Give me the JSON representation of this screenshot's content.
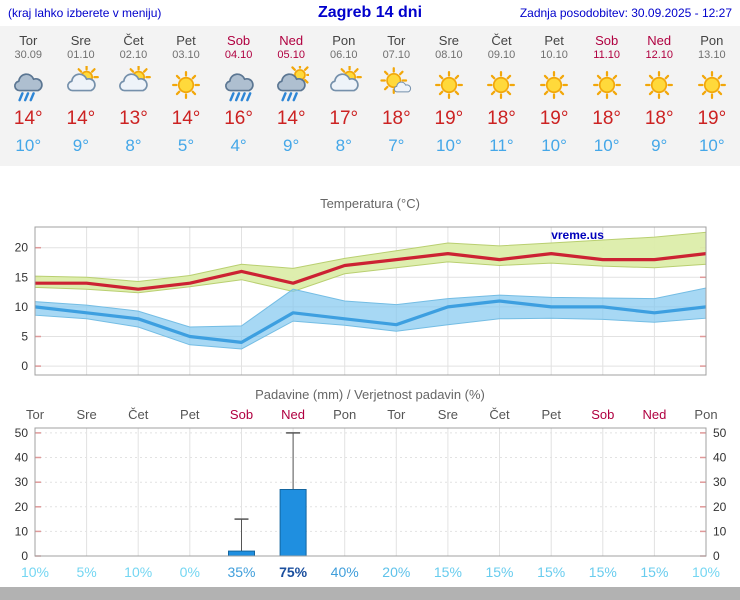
{
  "header": {
    "hint": "(kraj lahko izberete v meniju)",
    "title": "Zagreb 14 dni",
    "updated": "Zadnja posodobitev: 30.09.2025 - 12:27"
  },
  "colors": {
    "header_blue": "#0000cc",
    "weekend_red": "#b00040",
    "temp_high_red": "#cc2222",
    "temp_low_blue": "#44a7e8",
    "panel_gray": "#f3f3f3",
    "title_gray": "#666666",
    "footer_gray": "#b2b2b2"
  },
  "forecast_days": [
    {
      "day": "Tor",
      "date": "30.09",
      "icon": "rain",
      "high": "14°",
      "low": "10°",
      "weekend": false
    },
    {
      "day": "Sre",
      "date": "01.10",
      "icon": "partly-cloudy",
      "high": "14°",
      "low": "9°",
      "weekend": false
    },
    {
      "day": "Čet",
      "date": "02.10",
      "icon": "partly-cloudy",
      "high": "13°",
      "low": "8°",
      "weekend": false
    },
    {
      "day": "Pet",
      "date": "03.10",
      "icon": "sunny",
      "high": "14°",
      "low": "5°",
      "weekend": false
    },
    {
      "day": "Sob",
      "date": "04.10",
      "icon": "heavy-rain",
      "high": "16°",
      "low": "4°",
      "weekend": true
    },
    {
      "day": "Ned",
      "date": "05.10",
      "icon": "rain-sun",
      "high": "14°",
      "low": "9°",
      "weekend": true
    },
    {
      "day": "Pon",
      "date": "06.10",
      "icon": "partly-cloudy",
      "high": "17°",
      "low": "8°",
      "weekend": false
    },
    {
      "day": "Tor",
      "date": "07.10",
      "icon": "mostly-sunny",
      "high": "18°",
      "low": "7°",
      "weekend": false
    },
    {
      "day": "Sre",
      "date": "08.10",
      "icon": "sunny",
      "high": "19°",
      "low": "10°",
      "weekend": false
    },
    {
      "day": "Čet",
      "date": "09.10",
      "icon": "sunny",
      "high": "18°",
      "low": "11°",
      "weekend": false
    },
    {
      "day": "Pet",
      "date": "10.10",
      "icon": "sunny",
      "high": "19°",
      "low": "10°",
      "weekend": false
    },
    {
      "day": "Sob",
      "date": "11.10",
      "icon": "sunny",
      "high": "18°",
      "low": "10°",
      "weekend": true
    },
    {
      "day": "Ned",
      "date": "12.10",
      "icon": "sunny",
      "high": "18°",
      "low": "9°",
      "weekend": true
    },
    {
      "day": "Pon",
      "date": "13.10",
      "icon": "sunny",
      "high": "19°",
      "low": "10°",
      "weekend": false
    }
  ],
  "chart_data": [
    {
      "type": "line",
      "title": "Temperatura (°C)",
      "watermark": "vreme.us",
      "watermark_color": "#0000bb",
      "ylim": [
        -1.5,
        23.5
      ],
      "yticks": [
        0,
        5,
        10,
        15,
        20
      ],
      "series": [
        {
          "name": "temp-max-line",
          "color": "#cc2233",
          "values": [
            14,
            14,
            13,
            14,
            16,
            14,
            17,
            18,
            19,
            18,
            19,
            18,
            18,
            19
          ]
        },
        {
          "name": "temp-min-line",
          "color": "#3d9fe0",
          "values": [
            10,
            9,
            8,
            5,
            4,
            9,
            8,
            7,
            10,
            11,
            10,
            10,
            9,
            10
          ]
        }
      ],
      "bands": [
        {
          "name": "temp-max-range-band",
          "color": "#dcedaa",
          "edge": "#b9cf70",
          "opacity": 0.95,
          "upper": [
            15.2,
            15.0,
            14.3,
            15.3,
            17.2,
            16.5,
            18.2,
            19.5,
            20.8,
            20.3,
            20.8,
            21.3,
            21.8,
            22.6
          ],
          "lower": [
            13.3,
            13.0,
            12.4,
            13.4,
            14.6,
            12.6,
            15.6,
            16.6,
            17.6,
            17.0,
            17.4,
            16.9,
            16.6,
            17.2
          ]
        },
        {
          "name": "temp-min-range-band",
          "color": "#82c8f0",
          "edge": "#74bde4",
          "opacity": 0.7,
          "upper": [
            10.9,
            10.3,
            9.3,
            6.6,
            6.8,
            13.0,
            11.0,
            10.4,
            11.4,
            12.0,
            11.6,
            11.5,
            11.4,
            13.2
          ],
          "lower": [
            8.6,
            8.0,
            6.6,
            3.6,
            2.9,
            7.6,
            6.9,
            5.9,
            7.0,
            8.0,
            8.1,
            7.9,
            7.4,
            8.1
          ]
        }
      ]
    },
    {
      "type": "bar",
      "title": "Padavine (mm) / Verjetnost padavin (%)",
      "categories": [
        "Tor",
        "Sre",
        "Čet",
        "Pet",
        "Sob",
        "Ned",
        "Pon",
        "Tor",
        "Sre",
        "Čet",
        "Pet",
        "Sob",
        "Ned",
        "Pon"
      ],
      "weekend": [
        false,
        false,
        false,
        false,
        true,
        true,
        false,
        false,
        false,
        false,
        false,
        true,
        true,
        false
      ],
      "values": [
        0,
        0,
        0,
        0,
        2,
        27,
        0,
        0,
        0,
        0,
        0,
        0,
        0,
        0
      ],
      "whisker_max": [
        0,
        0,
        0,
        0,
        15,
        50,
        0,
        0,
        0,
        0,
        0,
        0,
        0,
        0
      ],
      "bar_color": "#1f8fe0",
      "bar_edge": "#13659f",
      "whisker_color": "#555555",
      "ylim": [
        0,
        52
      ],
      "yticks": [
        0,
        10,
        20,
        30,
        40,
        50
      ],
      "probabilities": [
        {
          "text": "10%",
          "color": "#74d6f2",
          "bold": false
        },
        {
          "text": "5%",
          "color": "#74d6f2",
          "bold": false
        },
        {
          "text": "10%",
          "color": "#74d6f2",
          "bold": false
        },
        {
          "text": "0%",
          "color": "#74d6f2",
          "bold": false
        },
        {
          "text": "35%",
          "color": "#3f9edb",
          "bold": false
        },
        {
          "text": "75%",
          "color": "#1b4f9e",
          "bold": true
        },
        {
          "text": "40%",
          "color": "#3f9edb",
          "bold": false
        },
        {
          "text": "20%",
          "color": "#5ec2ea",
          "bold": false
        },
        {
          "text": "15%",
          "color": "#68ccee",
          "bold": false
        },
        {
          "text": "15%",
          "color": "#68ccee",
          "bold": false
        },
        {
          "text": "15%",
          "color": "#68ccee",
          "bold": false
        },
        {
          "text": "15%",
          "color": "#68ccee",
          "bold": false
        },
        {
          "text": "15%",
          "color": "#68ccee",
          "bold": false
        },
        {
          "text": "10%",
          "color": "#74d6f2",
          "bold": false
        }
      ]
    }
  ]
}
